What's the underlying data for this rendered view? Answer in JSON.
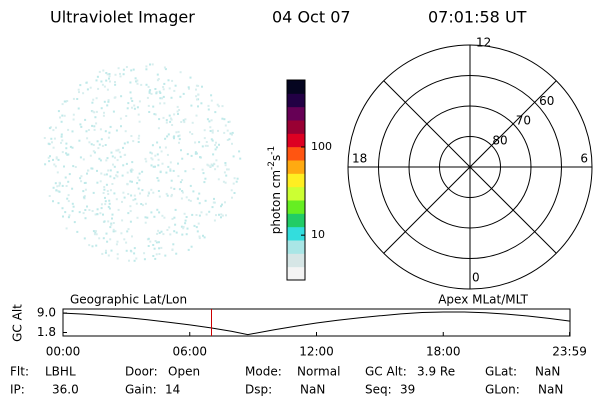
{
  "header": {
    "title": "Ultraviolet Imager",
    "date": "04 Oct 07",
    "time": "07:01:58 UT"
  },
  "colorbar": {
    "label_parts": [
      "photon cm",
      "-2",
      "s",
      "-1"
    ],
    "log": true,
    "lim": [
      3.1,
      575
    ],
    "ticks": [
      10,
      100
    ],
    "colors": [
      "#f4f4f4",
      "#d6e6e6",
      "#a9e6e6",
      "#33dddd",
      "#22cc66",
      "#66ee22",
      "#ccff33",
      "#ffee22",
      "#ffaa11",
      "#ff5511",
      "#dd0022",
      "#990033",
      "#660055",
      "#220044",
      "#050520"
    ]
  },
  "polar": {
    "hour_labels": [
      {
        "value": 12,
        "label": "12"
      },
      {
        "value": 18,
        "label": "18"
      },
      {
        "value": 6,
        "label": "6"
      },
      {
        "value": 0,
        "label": "0"
      }
    ],
    "rings": [
      80,
      70,
      60,
      50
    ],
    "ring_labels": [
      80,
      70,
      60
    ]
  },
  "chart_data": {
    "type": "line",
    "ylabel": "GC Alt",
    "left_label": "Geographic Lat/Lon",
    "right_label": "Apex MLat/MLT",
    "x": [
      0,
      1,
      2,
      3,
      4,
      5,
      6,
      7,
      8,
      8.75,
      10,
      11,
      12,
      13,
      14,
      15,
      16,
      17,
      18,
      19,
      20,
      21,
      22,
      23,
      24
    ],
    "values": [
      9.0,
      8.6,
      8.0,
      7.3,
      6.5,
      5.6,
      4.6,
      3.5,
      2.2,
      1.0,
      2.8,
      4.1,
      5.3,
      6.3,
      7.2,
      8.0,
      8.7,
      9.2,
      9.4,
      9.4,
      9.1,
      8.6,
      7.9,
      7.0,
      6.0
    ],
    "color": "#000000",
    "current_time": 7.03,
    "marker_color": "#cc0000",
    "xlim": [
      0,
      24
    ],
    "ylim": [
      0.5,
      10.5
    ],
    "xticks": [
      {
        "value": 0,
        "label": "00:00"
      },
      {
        "value": 6,
        "label": "06:00"
      },
      {
        "value": 12,
        "label": "12:00"
      },
      {
        "value": 18,
        "label": "18:00"
      },
      {
        "value": 23.98,
        "label": "23:59"
      }
    ],
    "yticks": [
      {
        "value": 9.0,
        "label": "9.0"
      },
      {
        "value": 1.8,
        "label": "1.8"
      }
    ]
  },
  "footer": {
    "rows": [
      [
        [
          "Flt:",
          "LBHL"
        ],
        [
          "Door:",
          "Open"
        ],
        [
          "Mode:",
          "Normal"
        ],
        [
          "GC Alt:",
          "3.9 Re"
        ],
        [
          "GLat:",
          "NaN"
        ]
      ],
      [
        [
          "IP:",
          "36.0"
        ],
        [
          "Gain:",
          "14"
        ],
        [
          "Dsp:",
          "NaN"
        ],
        [
          "Seq:",
          "39"
        ],
        [
          "GLon:",
          "NaN"
        ]
      ]
    ]
  }
}
